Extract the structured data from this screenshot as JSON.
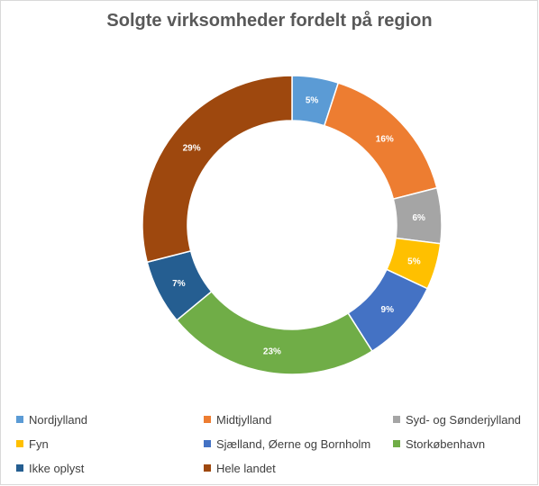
{
  "chart_data": {
    "type": "pie",
    "subtype": "doughnut",
    "title": "Solgte virksomheder fordelt på region",
    "legend_position": "bottom",
    "slices": [
      {
        "name": "Nordjylland",
        "value": 5,
        "label": "5%",
        "color": "#5b9bd5"
      },
      {
        "name": "Midtjylland",
        "value": 16,
        "label": "16%",
        "color": "#ed7d31"
      },
      {
        "name": "Syd- og Sønderjylland",
        "value": 6,
        "label": "6%",
        "color": "#a5a5a5"
      },
      {
        "name": "Fyn",
        "value": 5,
        "label": "5%",
        "color": "#ffc000"
      },
      {
        "name": "Sjælland, Øerne og Bornholm",
        "value": 9,
        "label": "9%",
        "color": "#4472c4"
      },
      {
        "name": "Storkøbenhavn",
        "value": 23,
        "label": "23%",
        "color": "#70ad47"
      },
      {
        "name": "Ikke oplyst",
        "value": 7,
        "label": "7%",
        "color": "#255e91"
      },
      {
        "name": "Hele landet",
        "value": 29,
        "label": "29%",
        "color": "#9e480e"
      }
    ]
  }
}
